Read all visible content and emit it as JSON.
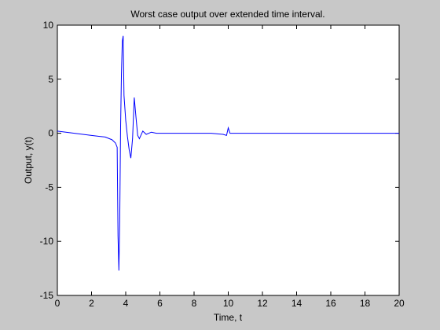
{
  "chart_data": {
    "type": "line",
    "title": "Worst case output over extended time interval.",
    "xlabel": "Time, t",
    "ylabel": "Output, y(t)",
    "xlim": [
      0,
      20
    ],
    "ylim": [
      -15,
      10
    ],
    "xticks": [
      "0",
      "2",
      "4",
      "6",
      "8",
      "10",
      "12",
      "14",
      "16",
      "18",
      "20"
    ],
    "yticks": [
      "10",
      "5",
      "0",
      "-5",
      "-10",
      "-15"
    ],
    "grid": false,
    "legend": "none",
    "series": [
      {
        "color": "#0000ff",
        "x": [
          0,
          1,
          2,
          2.8,
          3.2,
          3.4,
          3.5,
          3.55,
          3.6,
          3.65,
          3.7,
          3.75,
          3.8,
          3.85,
          3.9,
          4.0,
          4.1,
          4.2,
          4.3,
          4.4,
          4.5,
          4.6,
          4.7,
          4.8,
          5.0,
          5.2,
          5.5,
          5.8,
          6.0,
          7.0,
          8.0,
          9.0,
          9.7,
          9.9,
          10.0,
          10.1,
          10.3,
          11,
          12,
          14,
          16,
          18,
          20
        ],
        "y": [
          0.2,
          0.0,
          -0.2,
          -0.35,
          -0.6,
          -0.9,
          -1.3,
          -9.5,
          -12.7,
          -8.0,
          0.5,
          5.5,
          8.5,
          9.0,
          3.5,
          1.2,
          -0.3,
          -1.5,
          -2.3,
          -0.5,
          3.3,
          1.5,
          -0.2,
          -0.5,
          0.2,
          -0.1,
          0.1,
          0.0,
          0.0,
          0.0,
          0.0,
          0.0,
          -0.1,
          -0.2,
          0.5,
          0.0,
          0.0,
          0.0,
          0.0,
          0.0,
          0.0,
          0.0,
          0.0
        ]
      }
    ]
  },
  "colors": {
    "figure_bg": "#c8c8c8",
    "axes_bg": "#ffffff",
    "line": "#0000ff"
  }
}
